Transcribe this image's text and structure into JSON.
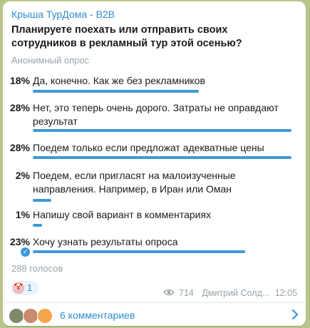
{
  "message": {
    "channel_name": "Крыша ТурДома - B2B",
    "question": "Планируете поехать или отправить своих сотрудников в рекламный тур этой осенью?",
    "poll_type": "Анонимный опрос",
    "options": [
      {
        "percent": "18%",
        "text": "Да, конечно. Как же без рекламников",
        "fraction": 0.18,
        "selected": false
      },
      {
        "percent": "28%",
        "text": "Нет, это теперь очень дорого. Затраты не оправдают результат",
        "fraction": 0.28,
        "selected": false
      },
      {
        "percent": "28%",
        "text": "Поедем только если предложат адекватные цены",
        "fraction": 0.28,
        "selected": false
      },
      {
        "percent": "2%",
        "text": "Поедем, если пригласят на малоизученные направления. Например, в Иран или Оман",
        "fraction": 0.02,
        "selected": false
      },
      {
        "percent": "1%",
        "text": "Напишу свой вариант в комментариях",
        "fraction": 0.01,
        "selected": false
      },
      {
        "percent": "23%",
        "text": "Хочу узнать результаты опроса",
        "fraction": 0.23,
        "selected": true
      }
    ],
    "votes_label": "288 голосов",
    "reaction": {
      "emoji": "🤡",
      "count": "1"
    },
    "views": "714",
    "author": "Дмитрий Солд...",
    "time": "12:05",
    "comments_label": "6 комментариев"
  },
  "colors": {
    "accent": "#3d9ad7",
    "link": "#2e8ccf",
    "muted": "#9aa3aa",
    "chat_background": "#b7c68b"
  }
}
